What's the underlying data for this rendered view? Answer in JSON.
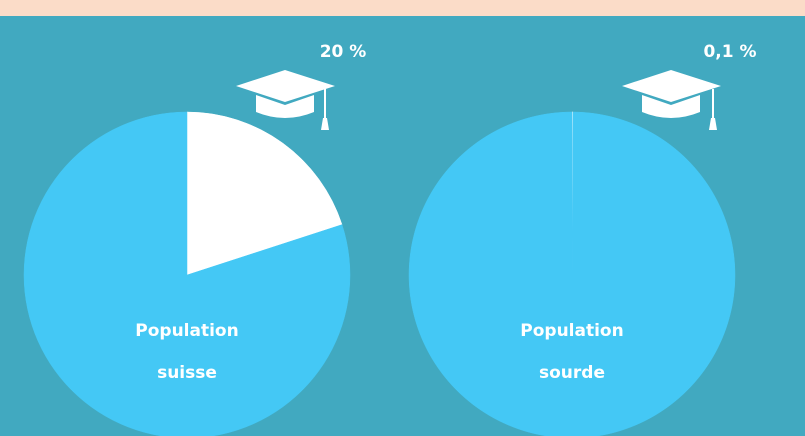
{
  "chart_data": [
    {
      "type": "pie",
      "title": "Population suisse",
      "categories": [
        null,
        null
      ],
      "values": [
        20,
        80
      ],
      "value_labels": [
        "20 %",
        null
      ],
      "colors": [
        "#ffffff",
        "#44c8f5"
      ]
    },
    {
      "type": "pie",
      "title": "Population sourde",
      "categories": [
        null,
        null
      ],
      "values": [
        0.1,
        99.9
      ],
      "value_labels": [
        "0,1 %",
        null
      ],
      "colors": [
        "#ffffff",
        "#44c8f5"
      ]
    }
  ]
}
